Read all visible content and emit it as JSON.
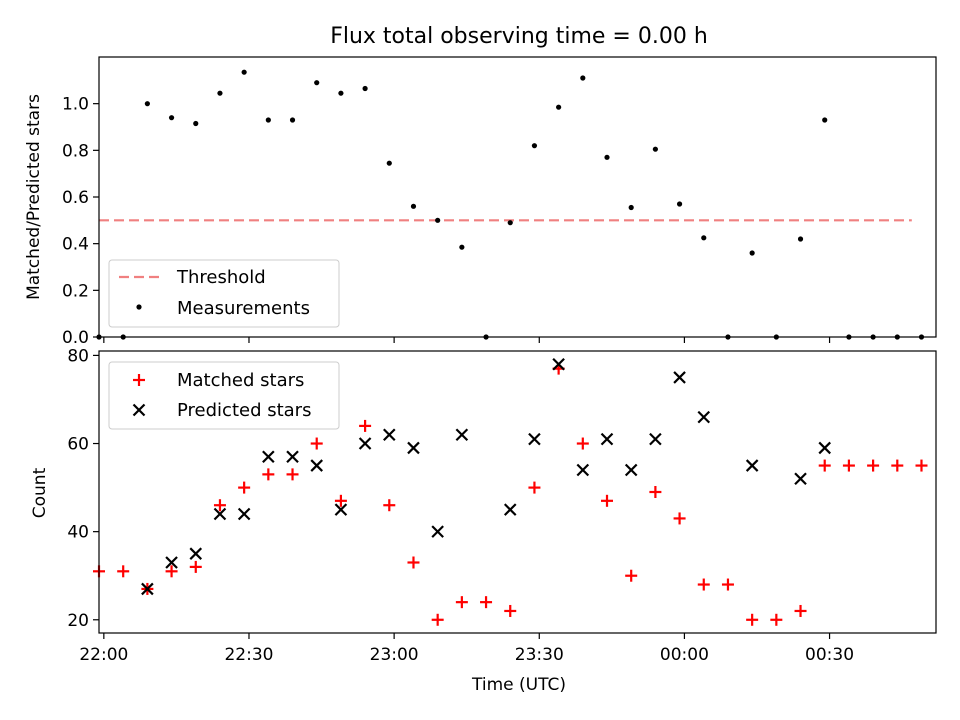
{
  "title": "Flux total observing time = 0.00 h",
  "xlabel": "Time (UTC)",
  "x_ticks": [
    "22:00",
    "22:30",
    "23:00",
    "23:30",
    "00:00",
    "00:30"
  ],
  "colors": {
    "threshold": "#f08080",
    "matched": "#ff0000",
    "predicted": "#000000",
    "measurements": "#000000"
  },
  "chart_data": [
    {
      "type": "scatter",
      "ylabel": "Matched/Predicted stars",
      "ylim": [
        0,
        1.2
      ],
      "yticks": [
        0.0,
        0.2,
        0.4,
        0.6,
        0.8,
        1.0
      ],
      "xlim": [
        "21:59",
        "00:52"
      ],
      "legend_position": "lower-left",
      "threshold": {
        "name": "Threshold",
        "value": 0.5,
        "x_start": "21:59",
        "x_end": "00:47"
      },
      "series": [
        {
          "name": "Measurements",
          "x": [
            "21:59",
            "22:04",
            "22:09",
            "22:14",
            "22:19",
            "22:24",
            "22:29",
            "22:34",
            "22:39",
            "22:44",
            "22:49",
            "22:54",
            "22:59",
            "23:04",
            "23:09",
            "23:14",
            "23:19",
            "23:24",
            "23:29",
            "23:34",
            "23:39",
            "23:44",
            "23:49",
            "23:54",
            "23:59",
            "00:04",
            "00:09",
            "00:14",
            "00:19",
            "00:24",
            "00:29",
            "00:34",
            "00:39",
            "00:44",
            "00:49"
          ],
          "y": [
            0.0,
            0.0,
            1.0,
            0.94,
            0.915,
            1.045,
            1.135,
            0.93,
            0.93,
            1.09,
            1.045,
            1.065,
            0.745,
            0.56,
            0.5,
            0.385,
            0.0,
            0.49,
            0.82,
            0.985,
            1.11,
            0.77,
            0.555,
            0.805,
            0.57,
            0.425,
            0.0,
            0.36,
            0.0,
            0.42,
            0.93,
            0.0,
            0.0,
            0.0,
            0.0
          ]
        }
      ]
    },
    {
      "type": "scatter",
      "ylabel": "Count",
      "ylim": [
        17,
        81
      ],
      "yticks": [
        20,
        40,
        60,
        80
      ],
      "xlim": [
        "21:59",
        "00:52"
      ],
      "legend_position": "upper-left",
      "series": [
        {
          "name": "Matched stars",
          "marker": "+",
          "x": [
            "21:59",
            "22:04",
            "22:09",
            "22:14",
            "22:19",
            "22:24",
            "22:29",
            "22:34",
            "22:39",
            "22:44",
            "22:49",
            "22:54",
            "22:59",
            "23:04",
            "23:09",
            "23:14",
            "23:19",
            "23:24",
            "23:29",
            "23:34",
            "23:39",
            "23:44",
            "23:49",
            "23:54",
            "23:59",
            "00:04",
            "00:09",
            "00:14",
            "00:19",
            "00:24",
            "00:29",
            "00:34",
            "00:39",
            "00:44",
            "00:49"
          ],
          "y": [
            31,
            31,
            27,
            31,
            32,
            46,
            50,
            53,
            53,
            60,
            47,
            64,
            46,
            33,
            20,
            24,
            24,
            22,
            50,
            77,
            60,
            47,
            30,
            49,
            43,
            28,
            28,
            20,
            20,
            22,
            55,
            55,
            55,
            55,
            55
          ]
        },
        {
          "name": "Predicted stars",
          "marker": "x",
          "x": [
            "22:09",
            "22:14",
            "22:19",
            "22:24",
            "22:29",
            "22:34",
            "22:39",
            "22:44",
            "22:49",
            "22:54",
            "22:59",
            "23:04",
            "23:09",
            "23:14",
            "23:24",
            "23:29",
            "23:34",
            "23:39",
            "23:44",
            "23:49",
            "23:54",
            "23:59",
            "00:04",
            "00:14",
            "00:24",
            "00:29"
          ],
          "y": [
            27,
            33,
            35,
            44,
            44,
            57,
            57,
            55,
            45,
            60,
            62,
            59,
            40,
            62,
            45,
            61,
            78,
            54,
            61,
            54,
            61,
            75,
            66,
            55,
            52,
            59
          ]
        }
      ]
    }
  ]
}
